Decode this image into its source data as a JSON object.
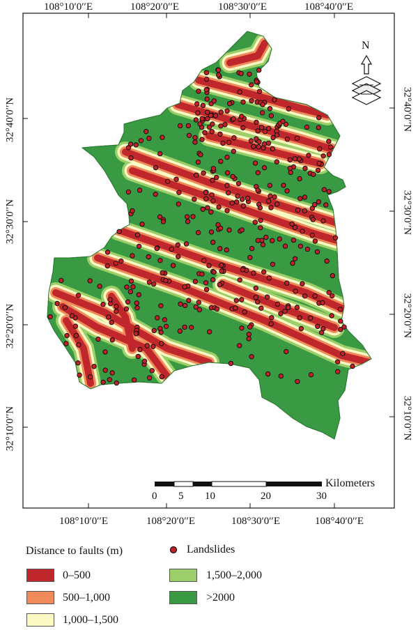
{
  "map": {
    "lon_labels": [
      "108°10′0′′E",
      "108°20′0′′E",
      "108°30′0′′E",
      "108°40′0′′E"
    ],
    "lat_labels": [
      "32°40′0′′N",
      "32°30′0′′N",
      "32°20′0′′N",
      "32°10′0′′N"
    ],
    "north_label": "N",
    "scale": {
      "unit": "Kilometers",
      "ticks": [
        "0",
        "5",
        "10",
        "20",
        "30"
      ]
    },
    "colors": {
      "d0_500": "#c0272d",
      "d500_1000": "#ef8b5a",
      "d1000_1500": "#fdf9c4",
      "d1500_2000": "#9ccf6a",
      "d2000_plus": "#3a9a43",
      "landslide_point": "#c51f27"
    }
  },
  "legend": {
    "title": "Distance to faults (m)",
    "landslides_label": "Landslides",
    "classes": [
      {
        "label": "0–500",
        "color": "#c0272d"
      },
      {
        "label": "500–1,000",
        "color": "#ef8b5a"
      },
      {
        "label": "1,000–1,500",
        "color": "#fdf9c4"
      },
      {
        "label": "1,500–2,000",
        "color": "#9ccf6a"
      },
      {
        "label": ">2000",
        "color": "#3a9a43"
      }
    ]
  }
}
